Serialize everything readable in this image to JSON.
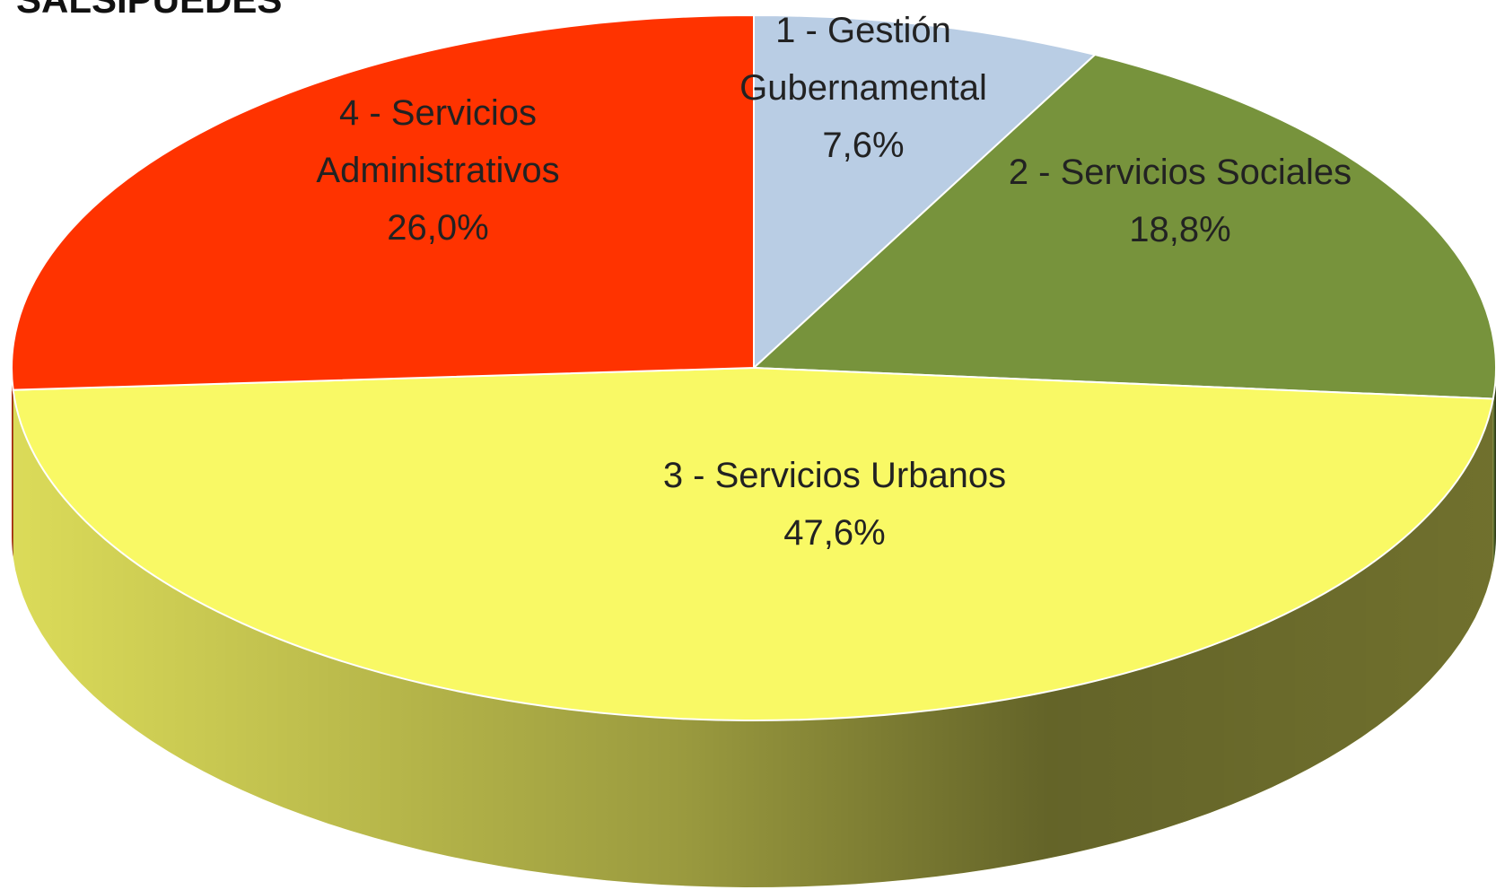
{
  "chart_data": {
    "type": "pie",
    "title": "SALSIPUEDES",
    "categories": [
      "1 - Gestión Gubernamental",
      "2 - Servicios Sociales",
      "3 - Servicios Urbanos",
      "4 - Servicios Administrativos"
    ],
    "values": [
      7.6,
      18.8,
      47.6,
      26.0
    ],
    "value_labels": [
      "7,6%",
      "18,8%",
      "47,6%",
      "26,0%"
    ],
    "colors": [
      "#b9cde4",
      "#77933c",
      "#f9f965",
      "#ff3300"
    ]
  }
}
